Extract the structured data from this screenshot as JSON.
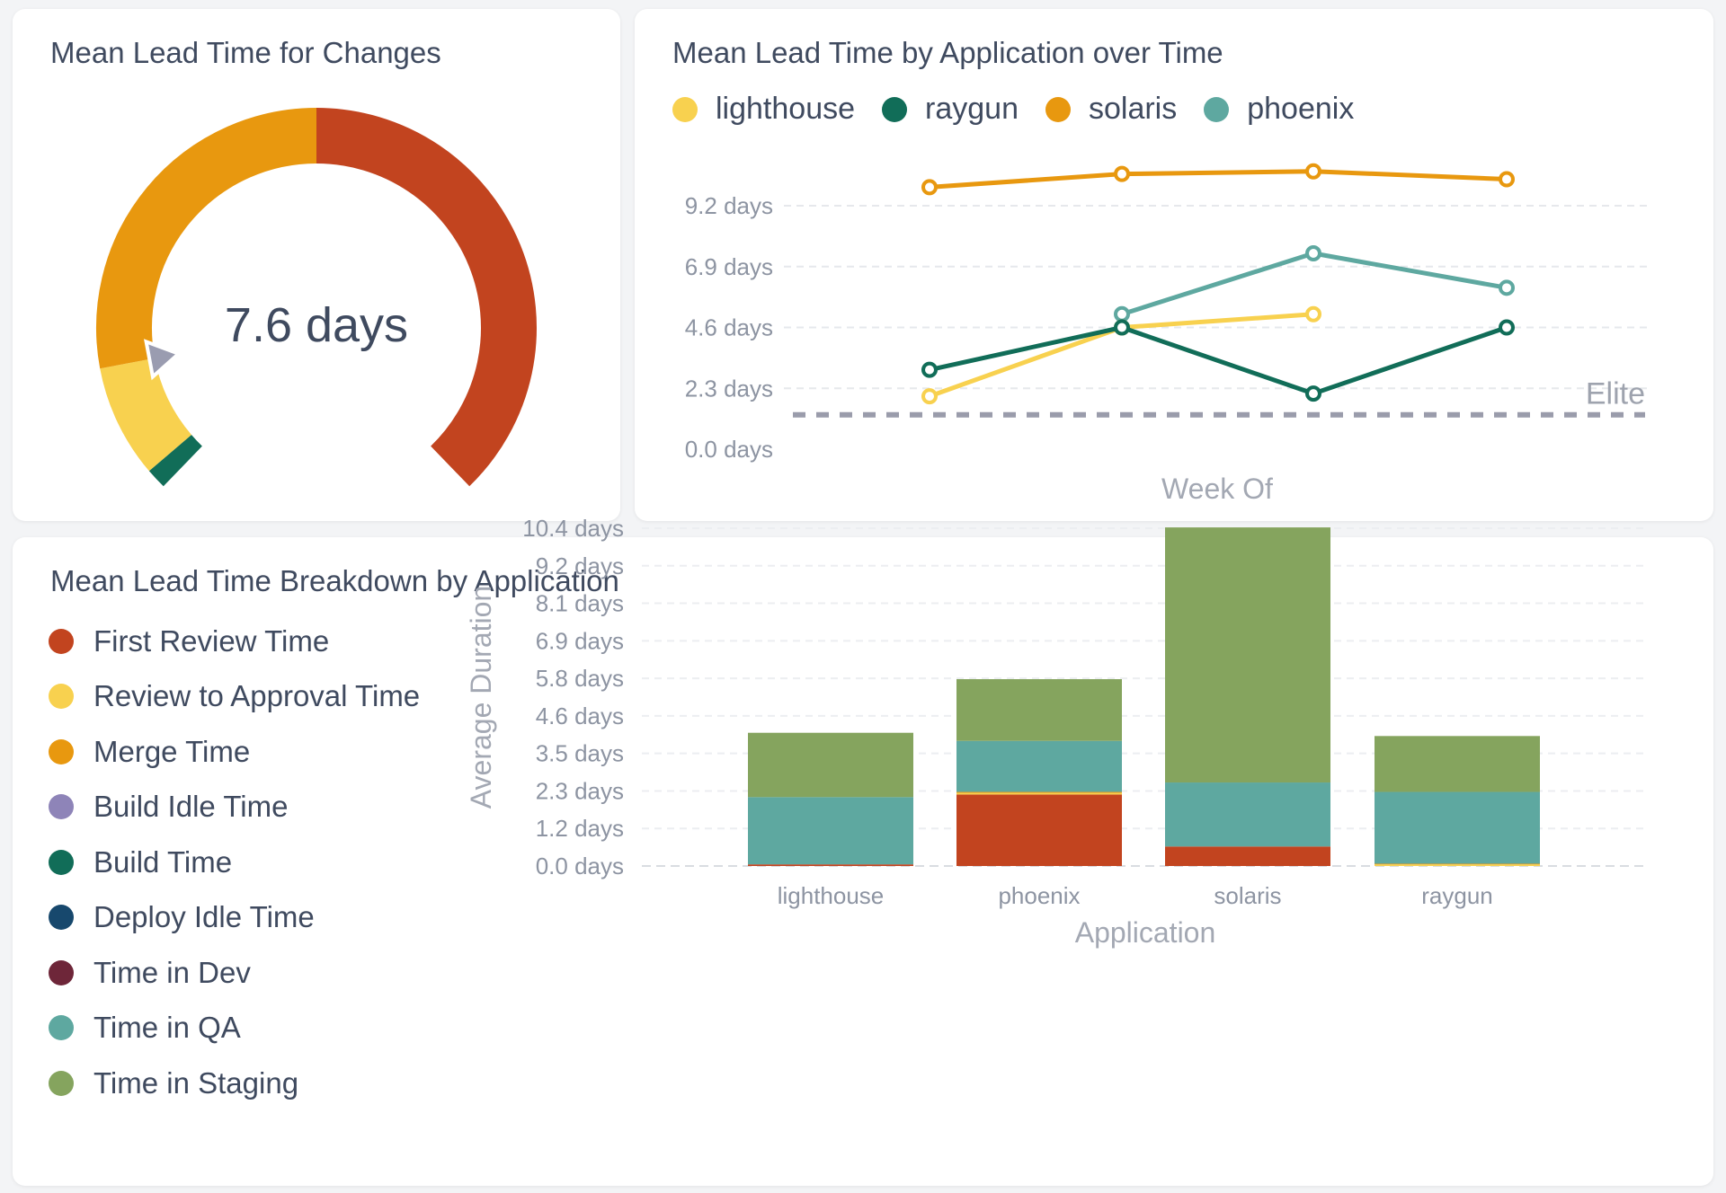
{
  "gauge": {
    "title": "Mean Lead Time for Changes",
    "value_label": "7.6 days",
    "chart_data": {
      "type": "gauge",
      "title": "Mean Lead Time for Changes",
      "value": 7.6,
      "unit": "days",
      "segments": [
        {
          "name": "green",
          "color": "#116d58",
          "share": 0.02
        },
        {
          "name": "yellow",
          "color": "#f8d14f",
          "share": 0.11
        },
        {
          "name": "orange",
          "color": "#e8980f",
          "share": 0.37
        },
        {
          "name": "red",
          "color": "#c2441f",
          "share": 0.5
        }
      ],
      "needle_color": "#9a9cb0"
    }
  },
  "line": {
    "title": "Mean Lead Time by Application over Time",
    "legend": [
      {
        "label": "lighthouse",
        "color": "#f8d14f"
      },
      {
        "label": "raygun",
        "color": "#116d58"
      },
      {
        "label": "solaris",
        "color": "#e8980f"
      },
      {
        "label": "phoenix",
        "color": "#5ea8a0"
      }
    ],
    "y_ticks": [
      "9.2 days",
      "6.9 days",
      "4.6 days",
      "2.3 days",
      "0.0 days"
    ],
    "xlabel": "Week Of",
    "elite_label": "Elite",
    "chart_data": {
      "type": "line",
      "title": "Mean Lead Time by Application over Time",
      "xlabel": "Week Of",
      "ylabel": "",
      "ylim": [
        0,
        11.5
      ],
      "y_tick_values": [
        0,
        2.3,
        4.6,
        6.9,
        9.2
      ],
      "x": [
        1,
        2,
        3,
        4
      ],
      "series": [
        {
          "name": "solaris",
          "color": "#e8980f",
          "values": [
            9.9,
            10.4,
            10.5,
            10.2
          ]
        },
        {
          "name": "phoenix",
          "color": "#5ea8a0",
          "values": [
            null,
            5.1,
            7.4,
            6.1
          ]
        },
        {
          "name": "lighthouse",
          "color": "#f8d14f",
          "values": [
            2.0,
            4.6,
            5.1,
            null
          ]
        },
        {
          "name": "raygun",
          "color": "#116d58",
          "values": [
            3.0,
            4.6,
            2.1,
            4.6
          ]
        }
      ],
      "reference_line": {
        "label": "Elite",
        "value": 1.3,
        "color": "#9a9cab"
      }
    }
  },
  "bars": {
    "title": "Mean Lead Time Breakdown by Application",
    "legend": [
      {
        "label": "First Review Time",
        "color": "#c2441f"
      },
      {
        "label": "Review to Approval Time",
        "color": "#f8d14f"
      },
      {
        "label": "Merge Time",
        "color": "#e8980f"
      },
      {
        "label": "Build Idle Time",
        "color": "#8e84b8"
      },
      {
        "label": "Build Time",
        "color": "#116d58"
      },
      {
        "label": "Deploy Idle Time",
        "color": "#17486d"
      },
      {
        "label": "Time in Dev",
        "color": "#6e2639"
      },
      {
        "label": "Time in QA",
        "color": "#5ea8a0"
      },
      {
        "label": "Time in Staging",
        "color": "#85a45e"
      }
    ],
    "y_ticks": [
      "10.4 days",
      "9.2 days",
      "8.1 days",
      "6.9 days",
      "5.8 days",
      "4.6 days",
      "3.5 days",
      "2.3 days",
      "1.2 days",
      "0.0 days"
    ],
    "xlabel": "Application",
    "ylabel": "Average Duration",
    "chart_data": {
      "type": "bar",
      "stacked": true,
      "title": "Mean Lead Time Breakdown by Application",
      "xlabel": "Application",
      "ylabel": "Average Duration",
      "ylim": [
        0,
        10.4
      ],
      "y_tick_values": [
        0,
        1.155,
        2.31,
        3.465,
        4.62,
        5.775,
        6.93,
        8.085,
        9.24,
        10.395
      ],
      "categories": [
        "lighthouse",
        "phoenix",
        "solaris",
        "raygun"
      ],
      "series": [
        {
          "name": "First Review Time",
          "color": "#c2441f",
          "values": [
            0.05,
            2.2,
            0.6,
            0.0
          ]
        },
        {
          "name": "Review to Approval Time",
          "color": "#f8d14f",
          "values": [
            0.0,
            0.05,
            0.0,
            0.05
          ]
        },
        {
          "name": "Merge Time",
          "color": "#e8980f",
          "values": [
            0.0,
            0.03,
            0.0,
            0.02
          ]
        },
        {
          "name": "Build Idle Time",
          "color": "#8e84b8",
          "values": [
            0,
            0,
            0,
            0
          ]
        },
        {
          "name": "Build Time",
          "color": "#116d58",
          "values": [
            0,
            0,
            0,
            0
          ]
        },
        {
          "name": "Deploy Idle Time",
          "color": "#17486d",
          "values": [
            0,
            0,
            0,
            0
          ]
        },
        {
          "name": "Time in Dev",
          "color": "#6e2639",
          "values": [
            0,
            0,
            0,
            0
          ]
        },
        {
          "name": "Time in QA",
          "color": "#5ea8a0",
          "values": [
            2.07,
            1.57,
            1.97,
            2.21
          ]
        },
        {
          "name": "Time in Staging",
          "color": "#85a45e",
          "values": [
            1.98,
            1.9,
            7.85,
            1.72
          ]
        }
      ]
    }
  }
}
